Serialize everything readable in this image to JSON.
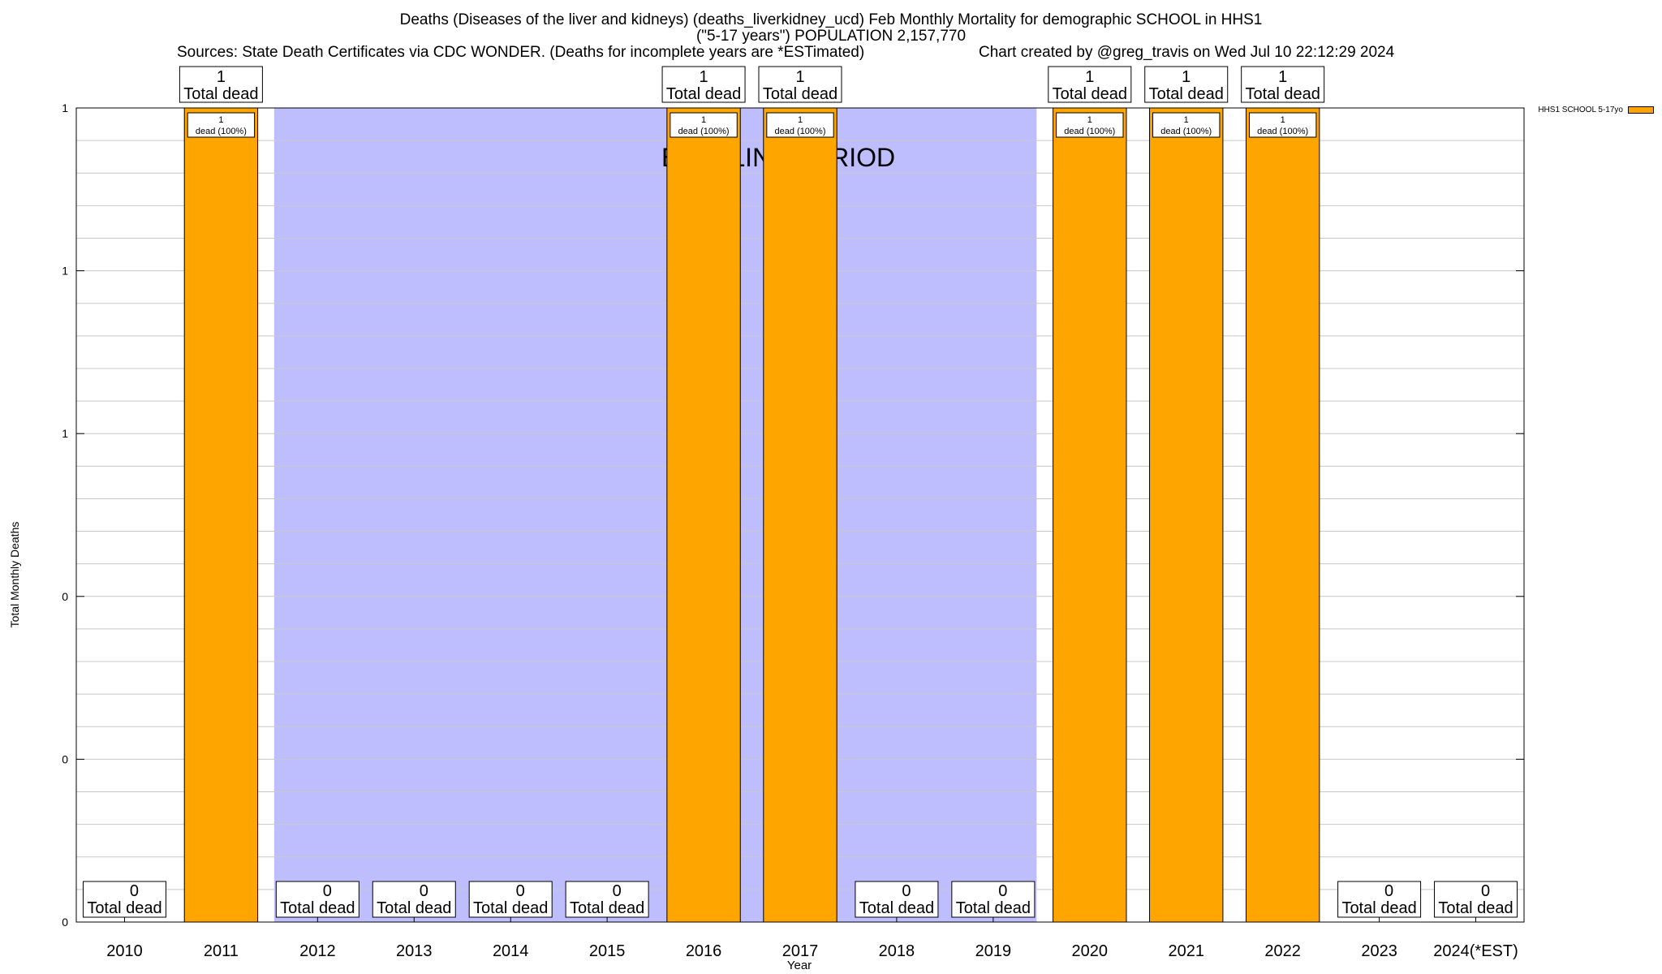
{
  "header": {
    "title_line1": "Deaths (Diseases of the liver and kidneys) (deaths_liverkidney_ucd) Feb Monthly Mortality for demographic SCHOOL in HHS1",
    "title_line2": "(\"5-17 years\") POPULATION 2,157,770",
    "sources": "Sources: State Death Certificates via CDC WONDER. (Deaths for incomplete years are *ESTimated)",
    "credit": "Chart created by @greg_travis on Wed Jul 10 22:12:29 2024"
  },
  "legend": {
    "label": "HHS1 SCHOOL 5-17yo"
  },
  "colors": {
    "bar": "#FFA500",
    "baseline": "#BEBEFF",
    "grid": "#C8C8C8"
  },
  "chart_data": {
    "type": "bar",
    "title": "Deaths (Diseases of the liver and kidneys) (deaths_liverkidney_ucd) Feb Monthly Mortality for demographic SCHOOL in HHS1",
    "xlabel": "Year",
    "ylabel": "Total Monthly Deaths",
    "categories": [
      "2010",
      "2011",
      "2012",
      "2013",
      "2014",
      "2015",
      "2016",
      "2017",
      "2018",
      "2019",
      "2020",
      "2021",
      "2022",
      "2023",
      "2024(*EST)"
    ],
    "series": [
      {
        "name": "HHS1 SCHOOL 5-17yo",
        "values": [
          0,
          1,
          0,
          0,
          0,
          0,
          1,
          1,
          0,
          0,
          1,
          1,
          1,
          0,
          0
        ]
      }
    ],
    "ylim": [
      0,
      1
    ],
    "y_tick_labels": [
      "0",
      "0",
      "0",
      "1",
      "1",
      "1"
    ],
    "total_label_suffix": "Total dead",
    "segment_label_suffix": "dead (100%)",
    "baseline_annotation": "BASELINE PERIOD",
    "baseline_ranges": [
      [
        "2012",
        "2016"
      ],
      [
        "2016",
        "2017"
      ],
      [
        "2017",
        "2019"
      ]
    ],
    "grid": true,
    "legend_position": "top-right"
  }
}
